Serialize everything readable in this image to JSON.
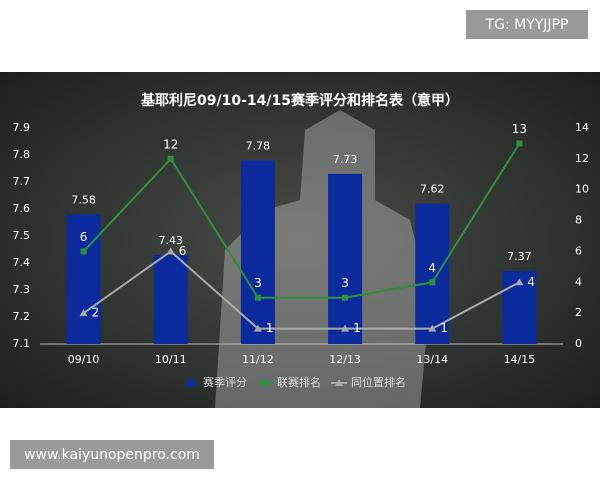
{
  "overlay": {
    "tag": "TG: MYYJJPP",
    "url": "www.kaiyunopenpro.com"
  },
  "chart_data": {
    "type": "combo",
    "title": "基耶利尼09/10-14/15赛季评分和排名表（意甲）",
    "categories": [
      "09/10",
      "10/11",
      "11/12",
      "12/13",
      "13/14",
      "14/15"
    ],
    "series": [
      {
        "name": "赛季评分",
        "type": "bar",
        "color": "#0b2a9c",
        "axis": "y",
        "values": [
          7.58,
          7.43,
          7.78,
          7.73,
          7.62,
          7.37
        ]
      },
      {
        "name": "联赛排名",
        "type": "line",
        "color": "#2f8f3a",
        "axis": "y2",
        "marker": "square",
        "values": [
          6,
          12,
          3,
          3,
          4,
          13
        ]
      },
      {
        "name": "同位置排名",
        "type": "line",
        "color": "#a9a9a9",
        "axis": "y2",
        "marker": "triangle",
        "values": [
          2,
          6,
          1,
          1,
          1,
          4
        ]
      }
    ],
    "ylim": [
      7.1,
      7.9
    ],
    "yticks": [
      7.1,
      7.2,
      7.3,
      7.4,
      7.5,
      7.6,
      7.7,
      7.8,
      7.9
    ],
    "y2lim": [
      0,
      14
    ],
    "y2ticks": [
      0,
      2,
      4,
      6,
      8,
      10,
      12,
      14
    ],
    "legend": "bottom"
  }
}
